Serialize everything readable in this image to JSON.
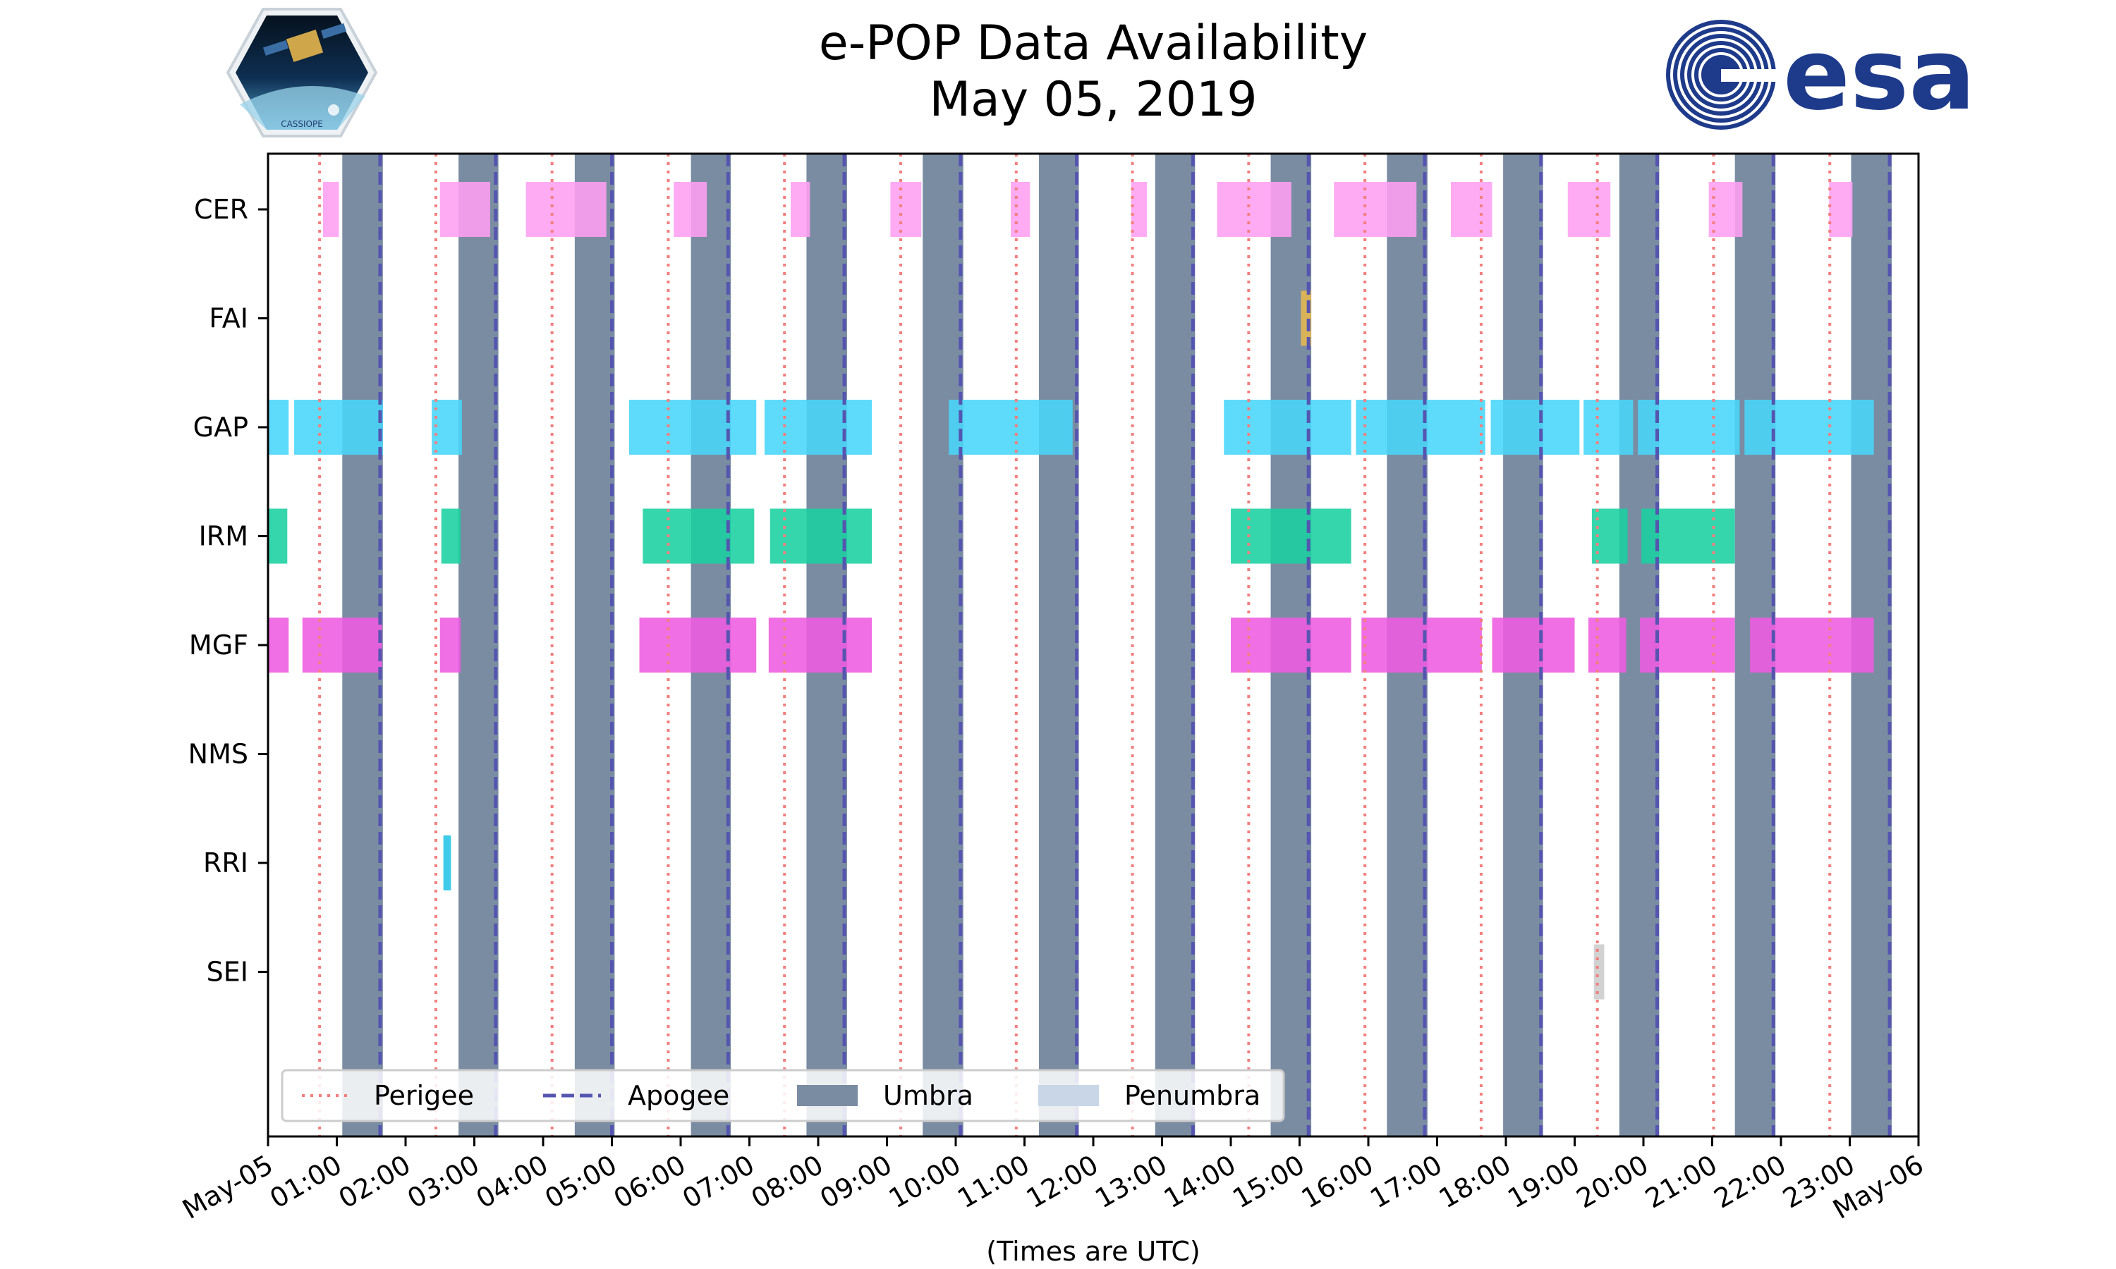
{
  "title_line1": "e-POP Data Availability",
  "title_line2": "May 05, 2019",
  "logos": {
    "left": "cassiope-logo",
    "left_text": "CASSIOPE",
    "right": "esa-logo",
    "right_text": "esa"
  },
  "chart_data": {
    "type": "timeline",
    "xlabel": "(Times are UTC)",
    "xlim_hours": [
      0,
      24
    ],
    "x_tick_labels": [
      "May-05",
      "01:00",
      "02:00",
      "03:00",
      "04:00",
      "05:00",
      "06:00",
      "07:00",
      "08:00",
      "09:00",
      "10:00",
      "11:00",
      "12:00",
      "13:00",
      "14:00",
      "15:00",
      "16:00",
      "17:00",
      "18:00",
      "19:00",
      "20:00",
      "21:00",
      "22:00",
      "23:00",
      "May-06"
    ],
    "instruments": [
      "CER",
      "FAI",
      "GAP",
      "IRM",
      "MGF",
      "NMS",
      "RRI",
      "SEI"
    ],
    "colors": {
      "CER": "#ff9ff3",
      "FAI": "#e6b84e",
      "GAP": "#48d6f9",
      "IRM": "#19d0a0",
      "MGF": "#ee5be0",
      "NMS": "#cccccc",
      "RRI": "#22c4e6",
      "SEI": "#cccccc",
      "umbra": "#7a8ca2",
      "penumbra": "#c8d6e8",
      "perigee": "#f37e7e",
      "apogee": "#5555b0"
    },
    "perigee_hours": [
      0.75,
      2.44,
      4.13,
      5.82,
      7.51,
      9.2,
      10.88,
      12.57,
      14.26,
      15.95,
      17.64,
      19.33,
      21.02,
      22.71
    ],
    "apogee_hours": [
      1.63,
      3.31,
      5.0,
      6.69,
      8.38,
      10.07,
      11.76,
      13.45,
      15.13,
      16.82,
      18.51,
      20.2,
      21.89,
      23.58
    ],
    "umbra_intervals": [
      [
        1.08,
        1.67
      ],
      [
        2.77,
        3.35
      ],
      [
        4.46,
        5.04
      ],
      [
        6.15,
        6.73
      ],
      [
        7.83,
        8.42
      ],
      [
        9.52,
        10.11
      ],
      [
        11.21,
        11.79
      ],
      [
        12.9,
        13.48
      ],
      [
        14.58,
        15.17
      ],
      [
        16.27,
        16.86
      ],
      [
        17.96,
        18.54
      ],
      [
        19.65,
        20.23
      ],
      [
        21.33,
        21.92
      ],
      [
        23.02,
        23.61
      ]
    ],
    "availability": {
      "CER": [
        [
          0.8,
          1.03
        ],
        [
          2.5,
          3.23
        ],
        [
          3.75,
          4.92
        ],
        [
          5.9,
          6.38
        ],
        [
          7.6,
          7.88
        ],
        [
          9.05,
          9.5
        ],
        [
          10.8,
          11.08
        ],
        [
          12.55,
          12.78
        ],
        [
          13.8,
          14.88
        ],
        [
          15.5,
          16.7
        ],
        [
          17.2,
          17.8
        ],
        [
          18.9,
          19.52
        ],
        [
          20.95,
          21.44
        ],
        [
          22.7,
          23.04
        ]
      ],
      "FAI": [
        [
          15.02,
          15.17
        ]
      ],
      "GAP": [
        [
          0.0,
          0.3
        ],
        [
          0.38,
          1.67
        ],
        [
          2.38,
          2.82
        ],
        [
          5.25,
          7.1
        ],
        [
          7.22,
          8.78
        ],
        [
          9.9,
          11.7
        ],
        [
          13.9,
          15.75
        ],
        [
          15.82,
          17.7
        ],
        [
          17.78,
          19.07
        ],
        [
          19.13,
          19.85
        ],
        [
          19.92,
          21.4
        ],
        [
          21.47,
          23.35
        ]
      ],
      "IRM": [
        [
          0.0,
          0.28
        ],
        [
          2.52,
          2.8
        ],
        [
          5.45,
          7.07
        ],
        [
          7.3,
          8.78
        ],
        [
          14.0,
          15.75
        ],
        [
          19.25,
          19.77
        ],
        [
          19.97,
          21.33
        ]
      ],
      "MGF": [
        [
          0.0,
          0.3
        ],
        [
          0.5,
          1.66
        ],
        [
          2.5,
          2.8
        ],
        [
          5.4,
          7.1
        ],
        [
          7.28,
          8.78
        ],
        [
          14.0,
          15.75
        ],
        [
          15.9,
          17.65
        ],
        [
          17.8,
          19.0
        ],
        [
          19.2,
          19.75
        ],
        [
          19.95,
          21.33
        ],
        [
          21.55,
          23.35
        ]
      ],
      "NMS": [],
      "RRI": [
        [
          2.55,
          2.66
        ]
      ],
      "SEI": [
        [
          19.28,
          19.43
        ]
      ]
    },
    "legend": {
      "location": "bottom-left",
      "entries": [
        "Perigee",
        "Apogee",
        "Umbra",
        "Penumbra"
      ]
    }
  }
}
